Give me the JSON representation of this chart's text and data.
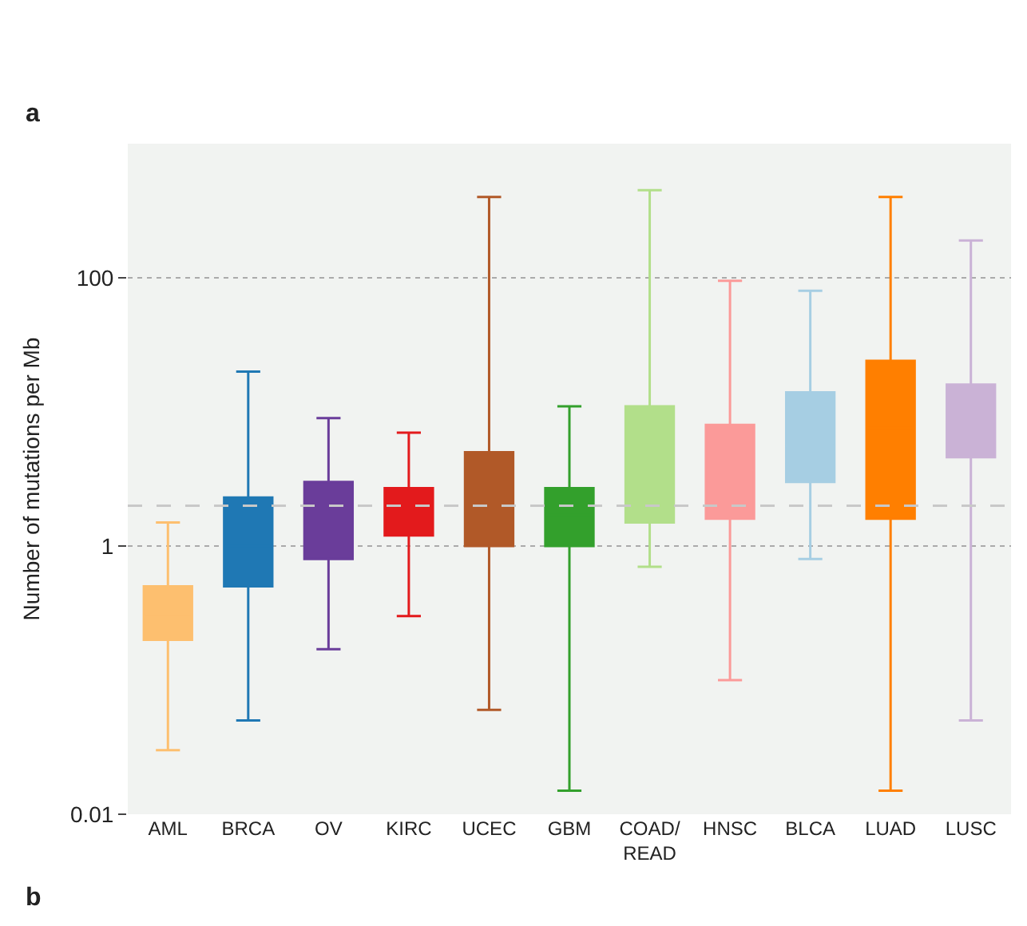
{
  "chart_data": {
    "type": "box",
    "ylabel": "Number of mutations per Mb",
    "annotations": [
      "a",
      "b"
    ],
    "categories": [
      "AML",
      "BRCA",
      "OV",
      "KIRC",
      "UCEC",
      "GBM",
      "COAD/\nREAD",
      "HNSC",
      "BLCA",
      "LUAD",
      "LUSC"
    ],
    "colors": [
      "#fdbf6f",
      "#1f78b4",
      "#6a3d9a",
      "#e31a1c",
      "#b15928",
      "#33a02c",
      "#b2df8a",
      "#fb9a99",
      "#a6cee3",
      "#ff7f00",
      "#cab2d6"
    ],
    "boxes": [
      {
        "low": 0.03,
        "q1": 0.2,
        "median": 0.3,
        "q3": 0.5,
        "high": 1.5
      },
      {
        "low": 0.05,
        "q1": 0.5,
        "median": 1.0,
        "q3": 2.3,
        "high": 20
      },
      {
        "low": 0.17,
        "q1": 0.8,
        "median": 1.4,
        "q3": 3,
        "high": 9
      },
      {
        "low": 0.3,
        "q1": 1.2,
        "median": 1.8,
        "q3": 2.7,
        "high": 7
      },
      {
        "low": 0.06,
        "q1": 1,
        "median": 1.5,
        "q3": 5,
        "high": 400
      },
      {
        "low": 0.015,
        "q1": 1,
        "median": 1.7,
        "q3": 2.7,
        "high": 11
      },
      {
        "low": 0.7,
        "q1": 1.5,
        "median": 3,
        "q3": 11,
        "high": 450
      },
      {
        "low": 0.1,
        "q1": 1.6,
        "median": 3.7,
        "q3": 8,
        "high": 95
      },
      {
        "low": 0.8,
        "q1": 3,
        "median": 5.6,
        "q3": 14,
        "high": 80
      },
      {
        "low": 0.015,
        "q1": 1.6,
        "median": 7.6,
        "q3": 24,
        "high": 400
      },
      {
        "low": 0.05,
        "q1": 4.6,
        "median": 8.5,
        "q3": 16,
        "high": 190
      }
    ],
    "ref_lines": [
      {
        "axis": "y",
        "value": 2,
        "line_style": "dashed",
        "color": "#c8c8c8"
      }
    ],
    "log": "y",
    "ylim": [
      0.01,
      1000
    ],
    "yticks": [
      0.01,
      1,
      100
    ],
    "grid": "y",
    "legend": false
  }
}
